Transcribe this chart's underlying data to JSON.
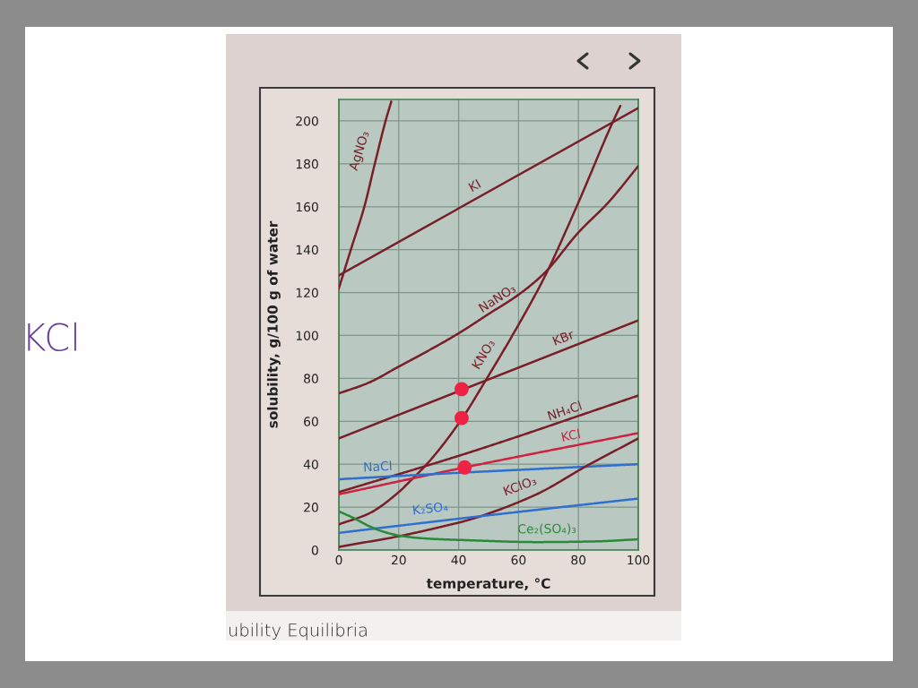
{
  "chart_data": {
    "type": "line",
    "xlabel": "temperature, °C",
    "ylabel": "solubility, g/100 g of water",
    "xlim": [
      0,
      100
    ],
    "ylim": [
      0,
      210
    ],
    "xticks": [
      0,
      20,
      40,
      60,
      80,
      100
    ],
    "yticks": [
      0,
      20,
      40,
      60,
      80,
      100,
      120,
      140,
      160,
      180,
      200
    ],
    "grid": true,
    "marker": "none",
    "line_style": "solid",
    "series": [
      {
        "name": "AgNO₃",
        "color": "#7a1e2a",
        "x": [
          0,
          4,
          8.5,
          12,
          15.6,
          17.5
        ],
        "values": [
          122,
          140,
          160,
          180,
          200,
          209
        ]
      },
      {
        "name": "KI",
        "color": "#7a1e2a",
        "x": [
          0,
          100
        ],
        "values": [
          128,
          206
        ]
      },
      {
        "name": "NaNO₃",
        "color": "#7a1e2a",
        "x": [
          0,
          10,
          20,
          30,
          40,
          50,
          60,
          68.6,
          80,
          90,
          100
        ],
        "values": [
          73,
          78,
          85.5,
          93,
          101,
          110,
          119,
          129,
          148,
          162,
          179
        ]
      },
      {
        "name": "KNO₃",
        "color": "#7a1e2a",
        "x": [
          0,
          10,
          20,
          23.7,
          30,
          41,
          49,
          60,
          68.6,
          80,
          91,
          94
        ],
        "values": [
          12,
          17,
          27,
          32,
          41,
          61,
          79,
          105,
          127,
          162,
          198,
          207
        ]
      },
      {
        "name": "KBr",
        "color": "#7a1e2a",
        "x": [
          0,
          100
        ],
        "values": [
          52,
          107
        ]
      },
      {
        "name": "NH₄Cl",
        "color": "#7a1e2a",
        "x": [
          0,
          42.5,
          100
        ],
        "values": [
          27,
          45,
          72
        ]
      },
      {
        "name": "KCl",
        "color": "#cc2244",
        "x": [
          0,
          42,
          100
        ],
        "values": [
          26,
          38.5,
          54.5
        ]
      },
      {
        "name": "NaCl",
        "color": "#2f6fd0",
        "x": [
          0,
          40,
          100
        ],
        "values": [
          33,
          36,
          40
        ]
      },
      {
        "name": "KClO₃",
        "color": "#7a1e2a",
        "x": [
          0,
          20.6,
          36.5,
          42.5,
          65.6,
          83,
          100
        ],
        "values": [
          1.5,
          6.6,
          11.6,
          13.7,
          25.7,
          39.4,
          52
        ]
      },
      {
        "name": "K₂SO₄",
        "color": "#2f6fd0",
        "x": [
          0,
          42.5,
          100
        ],
        "values": [
          8,
          15,
          24
        ]
      },
      {
        "name": "Ce₂(SO₄)₃",
        "color": "#2a8a3a",
        "x": [
          0,
          5,
          10,
          15,
          20.6,
          30,
          42.5,
          66,
          85,
          100
        ],
        "values": [
          18,
          14.9,
          11.2,
          8.5,
          6.6,
          5.3,
          4.6,
          3.7,
          4,
          5
        ]
      },
      {
        "type": "scatter",
        "marker": "circle",
        "color": "#ee2244",
        "x": [
          41,
          41,
          42
        ],
        "values": [
          75,
          61.5,
          38.5
        ]
      }
    ],
    "annotations": [
      "KCl",
      "ubility Equilibria"
    ]
  }
}
